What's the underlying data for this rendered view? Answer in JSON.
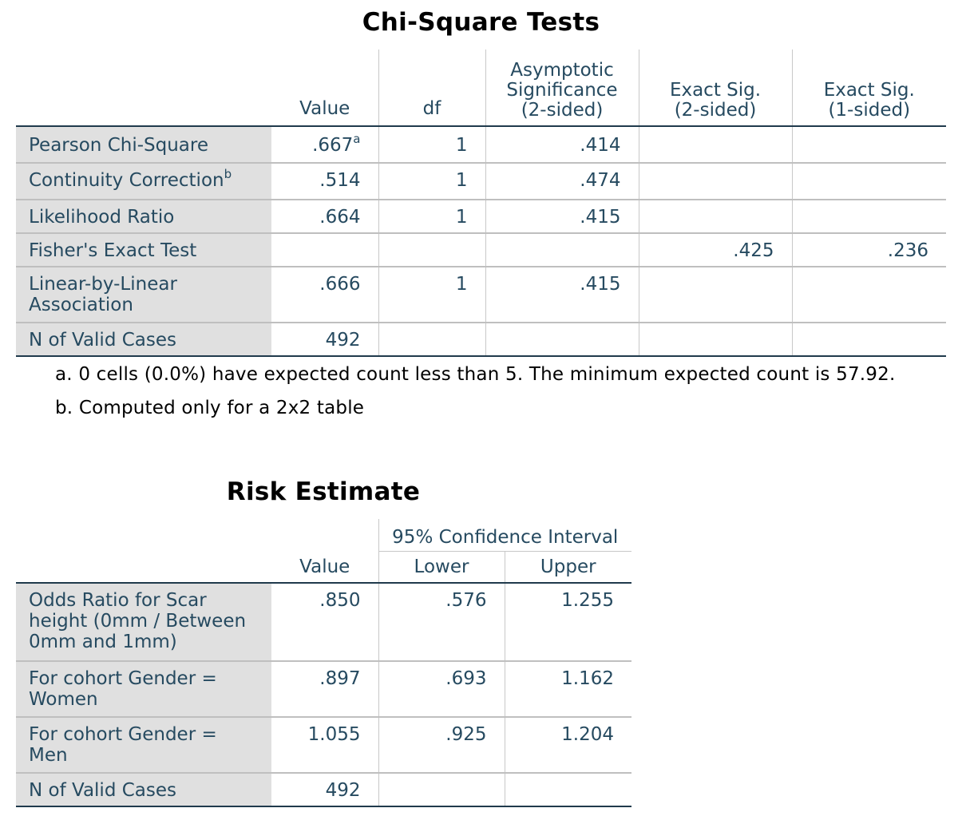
{
  "chi_square": {
    "title": "Chi-Square Tests",
    "headers": {
      "value": "Value",
      "df": "df",
      "asym_line1": "Asymptotic",
      "asym_line2": "Significance",
      "asym_line3": "(2-sided)",
      "exact2_line1": "Exact Sig.",
      "exact2_line2": "(2-sided)",
      "exact1_line1": "Exact Sig.",
      "exact1_line2": "(1-sided)"
    },
    "rows": [
      {
        "label": "Pearson Chi-Square",
        "label_sup": "",
        "value": ".667",
        "value_sup": "a",
        "df": "1",
        "asym": ".414",
        "exact2": "",
        "exact1": ""
      },
      {
        "label": "Continuity Correction",
        "label_sup": "b",
        "value": ".514",
        "value_sup": "",
        "df": "1",
        "asym": ".474",
        "exact2": "",
        "exact1": ""
      },
      {
        "label": "Likelihood Ratio",
        "label_sup": "",
        "value": ".664",
        "value_sup": "",
        "df": "1",
        "asym": ".415",
        "exact2": "",
        "exact1": ""
      },
      {
        "label": "Fisher's Exact Test",
        "label_sup": "",
        "value": "",
        "value_sup": "",
        "df": "",
        "asym": "",
        "exact2": ".425",
        "exact1": ".236"
      },
      {
        "label_line1": "Linear-by-Linear",
        "label_line2": "Association",
        "value": ".666",
        "df": "1",
        "asym": ".415",
        "exact2": "",
        "exact1": ""
      },
      {
        "label": "N of Valid Cases",
        "value": "492",
        "df": "",
        "asym": "",
        "exact2": "",
        "exact1": ""
      }
    ],
    "footnotes": [
      "a. 0 cells (0.0%) have expected count less than 5. The minimum expected count is 57.92.",
      "b. Computed only for a 2x2 table"
    ]
  },
  "risk": {
    "title": "Risk Estimate",
    "headers": {
      "ci": "95% Confidence Interval",
      "value": "Value",
      "lower": "Lower",
      "upper": "Upper"
    },
    "rows": [
      {
        "line1": "Odds Ratio for Scar",
        "line2": "height (0mm / Between",
        "line3": "0mm and 1mm)",
        "value": ".850",
        "lower": ".576",
        "upper": "1.255"
      },
      {
        "line1": "For cohort Gender =",
        "line2": "Women",
        "value": ".897",
        "lower": ".693",
        "upper": "1.162"
      },
      {
        "line1": "For cohort Gender =",
        "line2": "Men",
        "value": "1.055",
        "lower": ".925",
        "upper": "1.204"
      },
      {
        "line1": "N of Valid Cases",
        "value": "492",
        "lower": "",
        "upper": ""
      }
    ]
  }
}
